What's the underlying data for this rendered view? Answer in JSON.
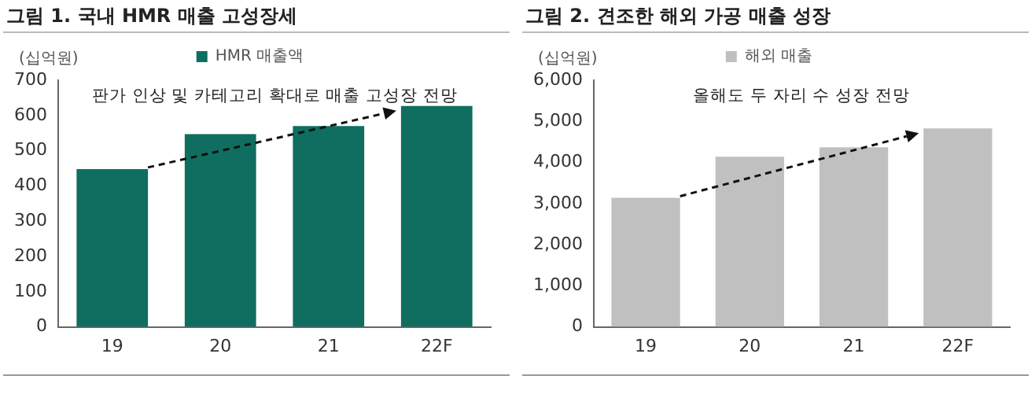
{
  "chart_data": [
    {
      "type": "bar",
      "title": "그림 1. 국내 HMR 매출 고성장세",
      "ylabel": "(십억원)",
      "categories": [
        "19",
        "20",
        "21",
        "22F"
      ],
      "series": [
        {
          "name": "HMR 매출액",
          "color": "#0f6e5f",
          "values": [
            448,
            547,
            570,
            627
          ]
        }
      ],
      "ylim": [
        0,
        700
      ],
      "yticks": [
        0,
        100,
        200,
        300,
        400,
        500,
        600,
        700
      ],
      "grid": false,
      "legend": "top",
      "annotations": [
        "판가 인상 및 카테고리 확대로 매출 고성장 전망"
      ]
    },
    {
      "type": "bar",
      "title": "그림 2. 견조한 해외 가공 매출 성장",
      "ylabel": "(십억원)",
      "categories": [
        "19",
        "20",
        "21",
        "22F"
      ],
      "series": [
        {
          "name": "해외 매출",
          "color": "#c0c0c0",
          "values": [
            3140,
            4140,
            4370,
            4830
          ]
        }
      ],
      "ylim": [
        0,
        6000
      ],
      "yticks": [
        {
          "value": 0,
          "label": "0"
        },
        {
          "value": 1000,
          "label": "1,000"
        },
        {
          "value": 2000,
          "label": "2,000"
        },
        {
          "value": 3000,
          "label": "3,000"
        },
        {
          "value": 4000,
          "label": "4,000"
        },
        {
          "value": 5000,
          "label": "5,000"
        },
        {
          "value": 6000,
          "label": "6,000"
        }
      ],
      "grid": false,
      "legend": "top",
      "annotations": [
        "올해도 두 자리 수 성장 전망"
      ]
    }
  ]
}
